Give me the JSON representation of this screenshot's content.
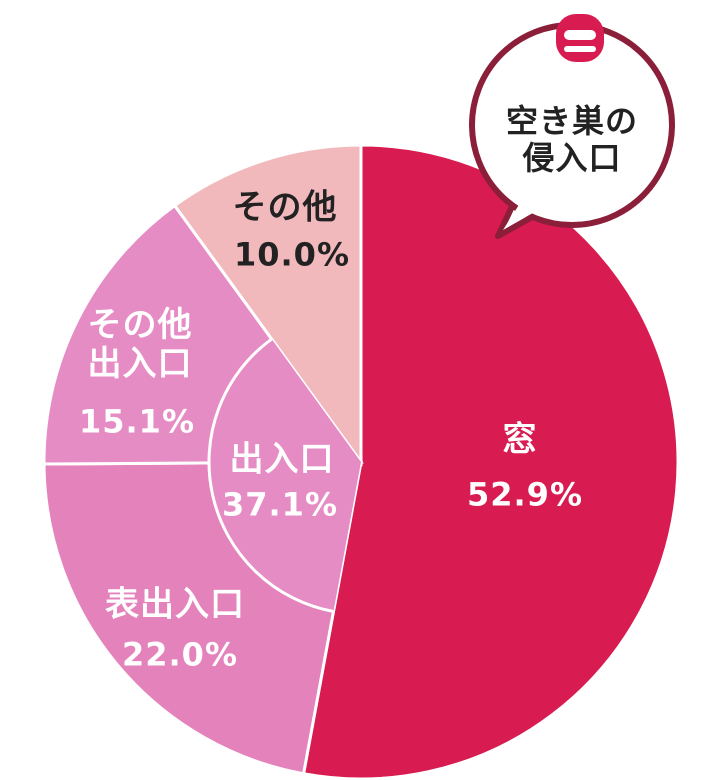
{
  "chart_data": {
    "type": "pie",
    "title": [
      "空き巣の",
      "侵入口"
    ],
    "categories": [
      "窓",
      "表出入口",
      "その他出入口",
      "その他"
    ],
    "values": [
      52.9,
      22.0,
      15.1,
      10.0
    ],
    "value_labels": [
      "52.9%",
      "22.0%",
      "15.1%",
      "10.0%"
    ],
    "colors": [
      "#d81b50",
      "#e482bb",
      "#e68cc4",
      "#f2b9bd"
    ],
    "group": {
      "label": "出入口",
      "value": 37.1,
      "value_label": "37.1%",
      "members": [
        1,
        2
      ],
      "color": "#e68cc4"
    }
  }
}
